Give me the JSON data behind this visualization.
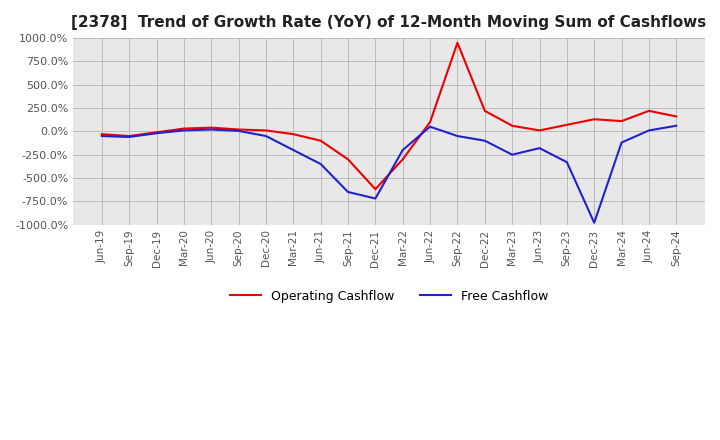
{
  "title": "[2378]  Trend of Growth Rate (YoY) of 12-Month Moving Sum of Cashflows",
  "title_fontsize": 11,
  "ylim": [
    -1000,
    1000
  ],
  "yticks": [
    -1000,
    -750,
    -500,
    -250,
    0,
    250,
    500,
    750,
    1000
  ],
  "ytick_labels": [
    "-1000.0%",
    "-750.0%",
    "-500.0%",
    "-250.0%",
    "0.0%",
    "250.0%",
    "500.0%",
    "750.0%",
    "1000.0%"
  ],
  "background_color": "#ffffff",
  "grid_color": "#bbbbbb",
  "plot_bg_color": "#e8e8e8",
  "x_labels": [
    "Jun-19",
    "Sep-19",
    "Dec-19",
    "Mar-20",
    "Jun-20",
    "Sep-20",
    "Dec-20",
    "Mar-21",
    "Jun-21",
    "Sep-21",
    "Dec-21",
    "Mar-22",
    "Jun-22",
    "Sep-22",
    "Dec-22",
    "Mar-23",
    "Jun-23",
    "Sep-23",
    "Dec-23",
    "Mar-24",
    "Jun-24",
    "Sep-24"
  ],
  "operating_cashflow": [
    -30,
    -50,
    -10,
    30,
    40,
    20,
    10,
    -30,
    -100,
    -300,
    -620,
    -300,
    100,
    950,
    220,
    60,
    10,
    70,
    130,
    110,
    220,
    160
  ],
  "free_cashflow": [
    -50,
    -60,
    -20,
    10,
    20,
    5,
    -50,
    -200,
    -350,
    -650,
    -720,
    -200,
    50,
    -50,
    -100,
    -250,
    -180,
    -330,
    -980,
    -120,
    10,
    60
  ],
  "op_color": "#ee0000",
  "fc_color": "#2222cc",
  "legend_labels": [
    "Operating Cashflow",
    "Free Cashflow"
  ]
}
